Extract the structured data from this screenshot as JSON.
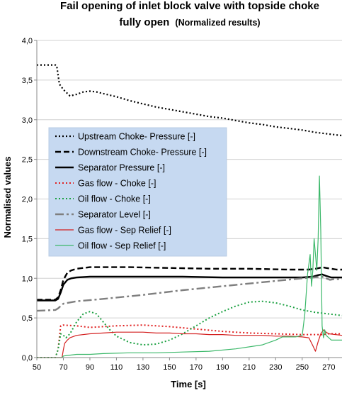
{
  "chart_data": {
    "type": "line",
    "title_line1": "Fail opening of inlet block valve with topside choke",
    "title_line2_main": "fully open",
    "title_line2_sub": "(Normalized results)",
    "xlabel": "Time [s]",
    "ylabel": "Normalised values",
    "xlim": [
      50,
      280
    ],
    "ylim": [
      0,
      4
    ],
    "x_ticks": [
      "50",
      "70",
      "90",
      "110",
      "130",
      "150",
      "170",
      "190",
      "210",
      "230",
      "250",
      "270"
    ],
    "y_ticks": [
      "0,0",
      "0,5",
      "1,0",
      "1,5",
      "2,0",
      "2,5",
      "3,0",
      "3,5",
      "4,0"
    ],
    "grid": "horizontal",
    "legend_position": "center-left",
    "series": [
      {
        "name": "Upstream Choke- Pressure [-]",
        "color": "#000000",
        "dash": "2,3",
        "width": 2.2,
        "x": [
          50,
          64,
          65,
          67,
          70,
          75,
          80,
          85,
          90,
          95,
          100,
          110,
          120,
          130,
          140,
          150,
          160,
          170,
          180,
          190,
          200,
          210,
          220,
          230,
          240,
          250,
          260,
          270,
          280
        ],
        "y": [
          3.69,
          3.69,
          3.68,
          3.45,
          3.38,
          3.3,
          3.32,
          3.35,
          3.36,
          3.35,
          3.33,
          3.29,
          3.24,
          3.2,
          3.16,
          3.13,
          3.1,
          3.07,
          3.04,
          3.02,
          2.99,
          2.96,
          2.94,
          2.91,
          2.89,
          2.87,
          2.84,
          2.82,
          2.8
        ]
      },
      {
        "name": "Downstream Choke- Pressure [-]",
        "color": "#000000",
        "dash": "8,4",
        "width": 2.4,
        "x": [
          50,
          64,
          66,
          68,
          70,
          73,
          76,
          80,
          90,
          100,
          120,
          150,
          180,
          210,
          240,
          255,
          260,
          263,
          265,
          268,
          272,
          276,
          280
        ],
        "y": [
          0.73,
          0.73,
          0.76,
          0.85,
          0.98,
          1.07,
          1.1,
          1.12,
          1.14,
          1.14,
          1.14,
          1.13,
          1.12,
          1.12,
          1.11,
          1.11,
          1.12,
          1.13,
          1.14,
          1.13,
          1.12,
          1.11,
          1.11
        ]
      },
      {
        "name": "Separator Pressure [-]",
        "color": "#000000",
        "dash": "",
        "width": 2.4,
        "x": [
          50,
          64,
          66,
          68,
          70,
          73,
          76,
          80,
          90,
          110,
          130,
          160,
          190,
          220,
          250,
          258,
          262,
          265,
          268,
          272,
          276,
          280
        ],
        "y": [
          0.72,
          0.72,
          0.74,
          0.82,
          0.92,
          0.98,
          1.0,
          1.01,
          1.02,
          1.02,
          1.02,
          1.02,
          1.01,
          1.01,
          1.01,
          1.02,
          1.04,
          1.05,
          1.03,
          1.01,
          1.01,
          1.01
        ]
      },
      {
        "name": "Gas flow - Choke [-]",
        "color": "#e02020",
        "dash": "2,3",
        "width": 2,
        "x": [
          50,
          64,
          66,
          68,
          70,
          80,
          90,
          100,
          110,
          130,
          150,
          170,
          190,
          210,
          230,
          250,
          260,
          265,
          270,
          280
        ],
        "y": [
          0.0,
          0.0,
          0.1,
          0.4,
          0.41,
          0.4,
          0.38,
          0.39,
          0.4,
          0.41,
          0.39,
          0.36,
          0.33,
          0.31,
          0.3,
          0.29,
          0.29,
          0.29,
          0.3,
          0.3
        ]
      },
      {
        "name": "Oil flow - Choke [-]",
        "color": "#1aa040",
        "dash": "2,3",
        "width": 2,
        "x": [
          50,
          64,
          66,
          68,
          70,
          72,
          75,
          80,
          85,
          90,
          95,
          100,
          105,
          110,
          120,
          130,
          140,
          150,
          160,
          170,
          180,
          190,
          200,
          210,
          220,
          230,
          240,
          250,
          260,
          270,
          280
        ],
        "y": [
          0.0,
          0.0,
          0.1,
          0.3,
          0.28,
          0.25,
          0.3,
          0.45,
          0.55,
          0.58,
          0.55,
          0.45,
          0.35,
          0.27,
          0.19,
          0.16,
          0.17,
          0.22,
          0.3,
          0.4,
          0.5,
          0.58,
          0.65,
          0.7,
          0.71,
          0.69,
          0.65,
          0.6,
          0.57,
          0.55,
          0.53
        ]
      },
      {
        "name": "Separator Level [-]",
        "color": "#7f7f7f",
        "dash": "12,4,3,4",
        "width": 2.4,
        "x": [
          50,
          64,
          66,
          68,
          70,
          80,
          100,
          130,
          160,
          190,
          220,
          250,
          265,
          268,
          271,
          274,
          280
        ],
        "y": [
          0.59,
          0.6,
          0.62,
          0.65,
          0.68,
          0.71,
          0.74,
          0.79,
          0.85,
          0.9,
          0.95,
          1.0,
          1.02,
          1.0,
          0.98,
          0.99,
          0.99
        ]
      },
      {
        "name": "Gas flow - Sep Relief [-]",
        "color": "#d42020",
        "dash": "",
        "width": 1.2,
        "x": [
          50,
          69,
          70,
          71,
          73,
          75,
          80,
          90,
          100,
          110,
          120,
          130,
          140,
          150,
          160,
          170,
          180,
          190,
          200,
          210,
          220,
          230,
          240,
          250,
          255,
          258,
          260,
          262,
          264,
          266,
          268,
          270,
          280
        ],
        "y": [
          0.0,
          0.0,
          0.1,
          0.18,
          0.22,
          0.25,
          0.28,
          0.3,
          0.31,
          0.32,
          0.32,
          0.32,
          0.31,
          0.31,
          0.3,
          0.3,
          0.29,
          0.29,
          0.28,
          0.28,
          0.28,
          0.27,
          0.27,
          0.26,
          0.25,
          0.15,
          0.08,
          0.2,
          0.3,
          0.35,
          0.32,
          0.3,
          0.28
        ]
      },
      {
        "name": "Oil flow - Sep Relief [-]",
        "color": "#3cb86a",
        "dash": "",
        "width": 1.2,
        "x": [
          50,
          69,
          70,
          75,
          80,
          90,
          100,
          120,
          140,
          160,
          180,
          200,
          220,
          230,
          235,
          240,
          245,
          250,
          252,
          254,
          256,
          257,
          258,
          259,
          260,
          261,
          262,
          263,
          264,
          265,
          266,
          267,
          268,
          270,
          272,
          280
        ],
        "y": [
          0.0,
          0.0,
          0.02,
          0.03,
          0.04,
          0.04,
          0.05,
          0.06,
          0.06,
          0.07,
          0.08,
          0.11,
          0.16,
          0.22,
          0.26,
          0.26,
          0.26,
          0.28,
          0.55,
          1.05,
          1.3,
          0.9,
          1.1,
          1.5,
          1.3,
          1.1,
          1.5,
          2.29,
          1.6,
          0.4,
          0.25,
          0.35,
          0.28,
          0.25,
          0.22,
          0.22
        ]
      }
    ]
  }
}
